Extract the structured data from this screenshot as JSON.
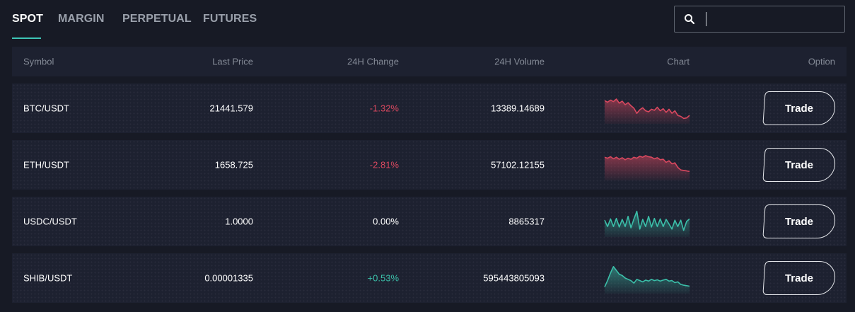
{
  "tabs": [
    {
      "label": "SPOT",
      "active": true
    },
    {
      "label": "MARGIN",
      "active": false
    },
    {
      "label": "PERPETUAL",
      "active": false
    },
    {
      "label": "FUTURES",
      "active": false
    }
  ],
  "search": {
    "value": "",
    "placeholder": ""
  },
  "table": {
    "headers": {
      "symbol": "Symbol",
      "last_price": "Last Price",
      "change_24h": "24H Change",
      "volume_24h": "24H Volume",
      "chart": "Chart",
      "option": "Option"
    },
    "trade_label": "Trade",
    "rows": [
      {
        "symbol": "BTC/USDT",
        "last_price": "21441.579",
        "change_24h": "-1.32%",
        "trend": "down",
        "volume_24h": "13389.14689",
        "spark": [
          0.8,
          0.74,
          0.82,
          0.76,
          0.86,
          0.7,
          0.78,
          0.64,
          0.72,
          0.6,
          0.5,
          0.3,
          0.44,
          0.52,
          0.4,
          0.36,
          0.46,
          0.42,
          0.54,
          0.4,
          0.48,
          0.34,
          0.46,
          0.3,
          0.4,
          0.22,
          0.18,
          0.1,
          0.12,
          0.22
        ]
      },
      {
        "symbol": "ETH/USDT",
        "last_price": "1658.725",
        "change_24h": "-2.81%",
        "trend": "down",
        "volume_24h": "57102.12155",
        "spark": [
          0.8,
          0.76,
          0.82,
          0.74,
          0.8,
          0.72,
          0.78,
          0.7,
          0.76,
          0.72,
          0.8,
          0.76,
          0.84,
          0.8,
          0.86,
          0.82,
          0.8,
          0.74,
          0.78,
          0.7,
          0.72,
          0.6,
          0.66,
          0.54,
          0.58,
          0.4,
          0.3,
          0.28,
          0.26,
          0.24
        ]
      },
      {
        "symbol": "USDC/USDT",
        "last_price": "1.0000",
        "change_24h": "0.00%",
        "trend": "flat",
        "volume_24h": "8865317",
        "spark": [
          0.55,
          0.3,
          0.6,
          0.3,
          0.62,
          0.28,
          0.58,
          0.3,
          0.7,
          0.25,
          0.6,
          0.9,
          0.2,
          0.58,
          0.3,
          0.7,
          0.28,
          0.62,
          0.3,
          0.6,
          0.3,
          0.58,
          0.4,
          0.2,
          0.55,
          0.3,
          0.55,
          0.15,
          0.5,
          0.6
        ]
      },
      {
        "symbol": "SHIB/USDT",
        "last_price": "0.00001335",
        "change_24h": "+0.53%",
        "trend": "up",
        "volume_24h": "595443805093",
        "spark": [
          0.15,
          0.4,
          0.7,
          0.95,
          0.8,
          0.65,
          0.6,
          0.5,
          0.45,
          0.4,
          0.3,
          0.45,
          0.4,
          0.35,
          0.42,
          0.38,
          0.45,
          0.4,
          0.43,
          0.38,
          0.42,
          0.45,
          0.38,
          0.4,
          0.32,
          0.35,
          0.25,
          0.22,
          0.2,
          0.18
        ]
      }
    ]
  },
  "colors": {
    "background": "#171a25",
    "row_bg": "#1d2130",
    "accent": "#3ec6b7",
    "negative": "#d9485f",
    "positive": "#3bbfa9",
    "flat_line": "#3bbfa9"
  }
}
